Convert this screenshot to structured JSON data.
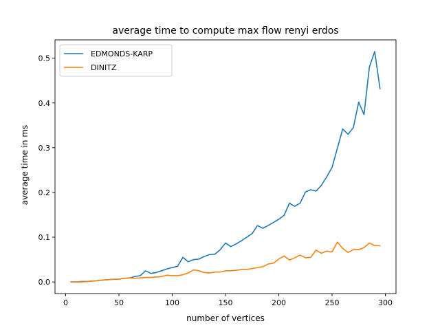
{
  "chart_data": {
    "type": "line",
    "title": "average time to compute max flow renyi erdos",
    "xlabel": "number of vertices",
    "ylabel": "average time in ms",
    "xlim": [
      -10,
      310
    ],
    "ylim": [
      -0.026,
      0.541
    ],
    "xticks": [
      0,
      50,
      100,
      150,
      200,
      250,
      300
    ],
    "yticks": [
      0.0,
      0.1,
      0.2,
      0.3,
      0.4,
      0.5
    ],
    "ytick_labels": [
      "0.0",
      "0.1",
      "0.2",
      "0.3",
      "0.4",
      "0.5"
    ],
    "grid": false,
    "legend_position": "top-left",
    "x": [
      5,
      10,
      15,
      20,
      25,
      30,
      35,
      40,
      45,
      50,
      55,
      60,
      65,
      70,
      75,
      80,
      85,
      90,
      95,
      100,
      105,
      110,
      115,
      120,
      125,
      130,
      135,
      140,
      145,
      150,
      155,
      160,
      165,
      170,
      175,
      180,
      185,
      190,
      195,
      200,
      205,
      210,
      215,
      220,
      225,
      230,
      235,
      240,
      245,
      250,
      255,
      260,
      265,
      270,
      275,
      280,
      285,
      290,
      295
    ],
    "series": [
      {
        "name": "EDMONDS-KARP",
        "color": "#1f77b4",
        "values": [
          0.0,
          0.0,
          0.001,
          0.001,
          0.002,
          0.003,
          0.004,
          0.005,
          0.006,
          0.006,
          0.008,
          0.009,
          0.012,
          0.014,
          0.025,
          0.019,
          0.021,
          0.025,
          0.029,
          0.032,
          0.035,
          0.055,
          0.045,
          0.05,
          0.051,
          0.057,
          0.061,
          0.062,
          0.072,
          0.087,
          0.079,
          0.085,
          0.092,
          0.1,
          0.108,
          0.126,
          0.12,
          0.126,
          0.133,
          0.14,
          0.149,
          0.176,
          0.169,
          0.176,
          0.201,
          0.206,
          0.203,
          0.216,
          0.235,
          0.256,
          0.299,
          0.342,
          0.33,
          0.345,
          0.402,
          0.374,
          0.48,
          0.515,
          0.432
        ]
      },
      {
        "name": "DINITZ",
        "color": "#ff7f0e",
        "values": [
          0.0,
          0.0,
          0.0,
          0.001,
          0.002,
          0.003,
          0.004,
          0.005,
          0.006,
          0.006,
          0.008,
          0.009,
          0.008,
          0.009,
          0.01,
          0.01,
          0.011,
          0.012,
          0.015,
          0.014,
          0.014,
          0.016,
          0.02,
          0.027,
          0.025,
          0.021,
          0.02,
          0.022,
          0.022,
          0.025,
          0.025,
          0.026,
          0.028,
          0.028,
          0.03,
          0.032,
          0.034,
          0.04,
          0.042,
          0.051,
          0.058,
          0.049,
          0.054,
          0.06,
          0.054,
          0.055,
          0.071,
          0.064,
          0.069,
          0.067,
          0.089,
          0.075,
          0.066,
          0.072,
          0.072,
          0.077,
          0.087,
          0.081,
          0.081
        ]
      }
    ]
  }
}
